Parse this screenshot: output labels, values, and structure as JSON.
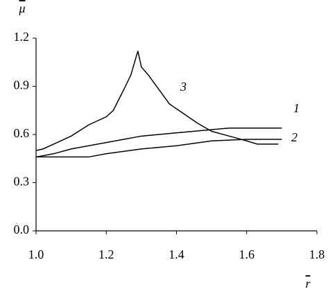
{
  "chart_data": {
    "type": "line",
    "x_label": "r",
    "y_label": "μ",
    "xlim": [
      1.0,
      1.8
    ],
    "xticks": [
      {
        "value": 1.0,
        "label": "1.0"
      },
      {
        "value": 1.2,
        "label": "1.2"
      },
      {
        "value": 1.4,
        "label": "1.4"
      },
      {
        "value": 1.6,
        "label": "1.6"
      },
      {
        "value": 1.8,
        "label": "1.8"
      }
    ],
    "ylim": [
      0.0,
      1.2
    ],
    "yticks": [
      {
        "value": 0.0,
        "label": "0.0"
      },
      {
        "value": 0.3,
        "label": "0.3"
      },
      {
        "value": 0.6,
        "label": "0.6"
      },
      {
        "value": 0.9,
        "label": "0.9"
      },
      {
        "value": 1.2,
        "label": "1.2"
      }
    ],
    "grid": false,
    "series": [
      {
        "name": "1",
        "color": "#000000",
        "x": [
          1.0,
          1.05,
          1.1,
          1.15,
          1.2,
          1.25,
          1.3,
          1.35,
          1.4,
          1.45,
          1.5,
          1.55,
          1.7
        ],
        "values": [
          0.46,
          0.48,
          0.51,
          0.53,
          0.55,
          0.57,
          0.59,
          0.6,
          0.61,
          0.62,
          0.63,
          0.64,
          0.64
        ]
      },
      {
        "name": "2",
        "color": "#000000",
        "x": [
          1.0,
          1.15,
          1.2,
          1.3,
          1.4,
          1.5,
          1.6,
          1.7
        ],
        "values": [
          0.46,
          0.46,
          0.48,
          0.51,
          0.53,
          0.56,
          0.57,
          0.57
        ]
      },
      {
        "name": "3",
        "color": "#000000",
        "x": [
          1.0,
          1.02,
          1.05,
          1.1,
          1.15,
          1.2,
          1.22,
          1.25,
          1.27,
          1.29,
          1.3,
          1.32,
          1.35,
          1.38,
          1.42,
          1.46,
          1.5,
          1.55,
          1.6,
          1.63,
          1.69
        ],
        "values": [
          0.5,
          0.51,
          0.54,
          0.59,
          0.66,
          0.71,
          0.75,
          0.88,
          0.97,
          1.12,
          1.02,
          0.97,
          0.88,
          0.79,
          0.73,
          0.67,
          0.62,
          0.59,
          0.56,
          0.54,
          0.54
        ]
      }
    ]
  }
}
